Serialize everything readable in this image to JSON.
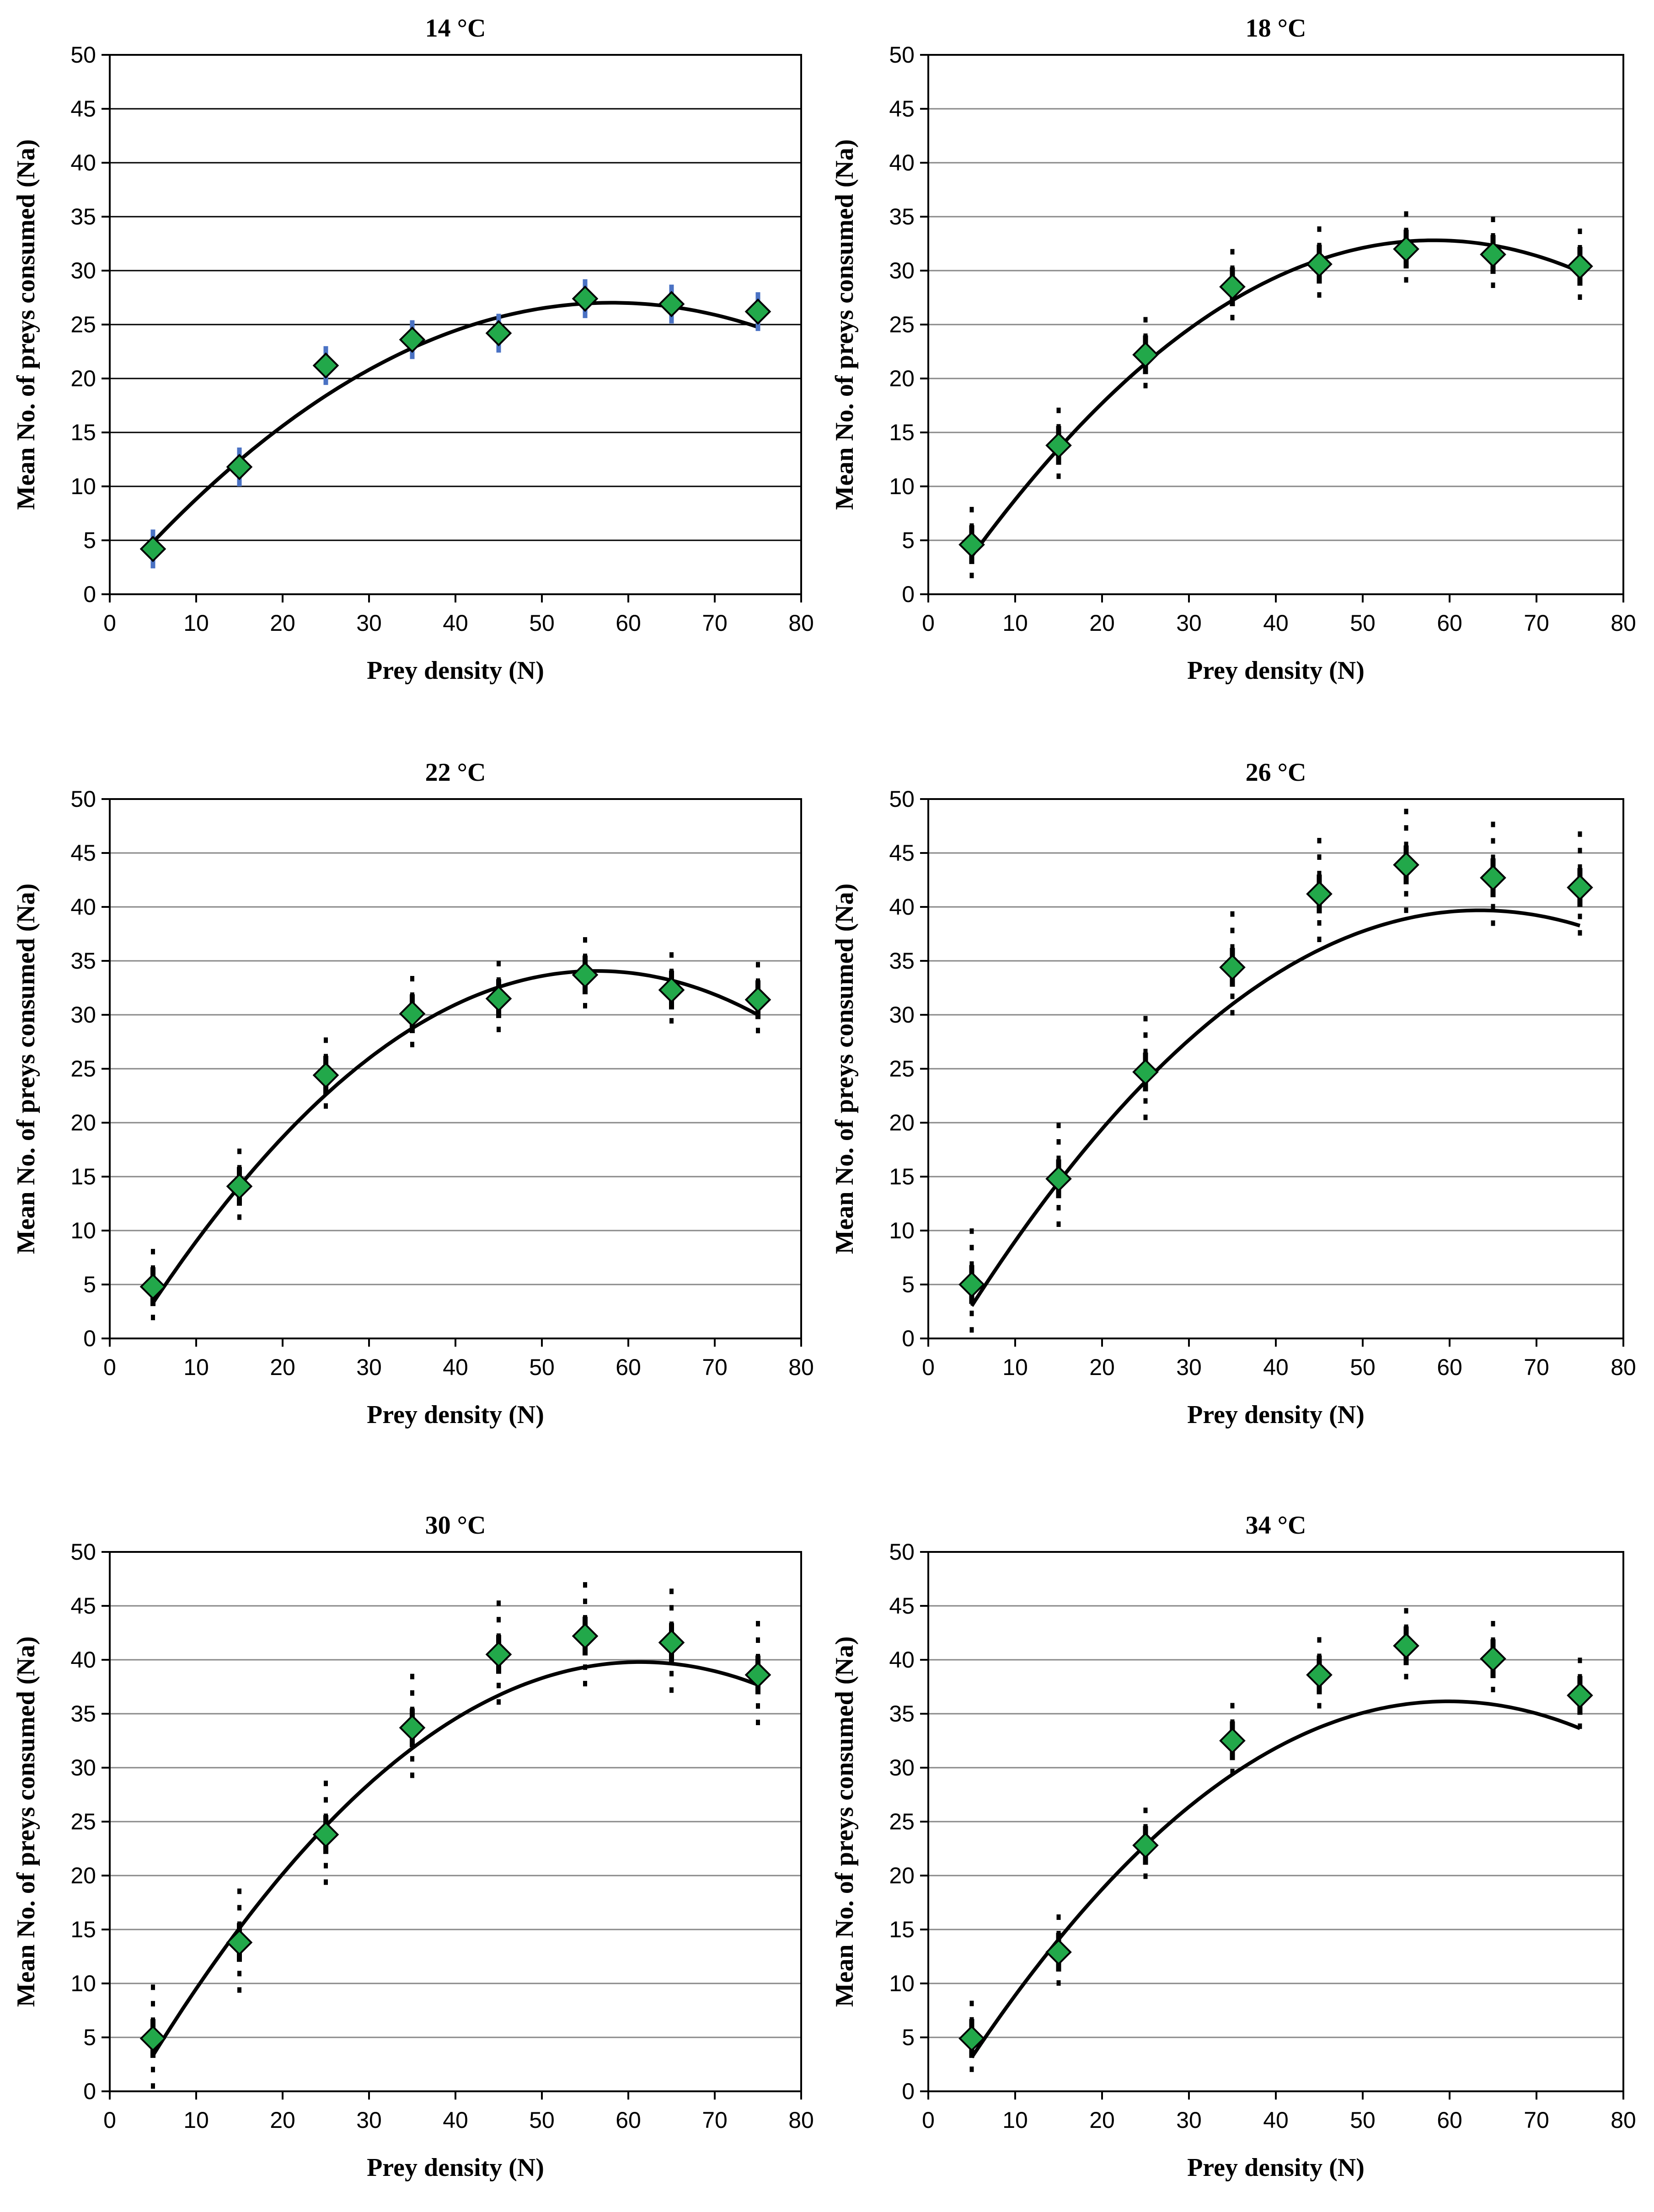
{
  "chart_data": [
    {
      "type": "scatter",
      "title": "14 °C",
      "xlabel": "Prey density (N)",
      "ylabel": "Mean No. of preys consumed (Na)",
      "xlim": [
        0,
        80
      ],
      "ylim": [
        0,
        50
      ],
      "xticks": [
        0,
        10,
        20,
        30,
        40,
        50,
        60,
        70,
        80
      ],
      "yticks": [
        0,
        5,
        10,
        15,
        20,
        25,
        30,
        35,
        40,
        45,
        50
      ],
      "grid": true,
      "colors": {
        "marker": "#22a84a",
        "error_bar": "#4a72c4",
        "fit": "#000000"
      },
      "x": [
        5,
        15,
        25,
        35,
        45,
        55,
        65,
        75
      ],
      "y": [
        4.2,
        11.8,
        21.2,
        23.6,
        24.2,
        27.4,
        26.9,
        26.2
      ],
      "error_inner": [
        1.8,
        1.8,
        1.8,
        1.8,
        1.8,
        1.8,
        1.8,
        1.8
      ],
      "error_outer": [
        0,
        0,
        0,
        0,
        0,
        0,
        0,
        0
      ],
      "fit_curve": {
        "type": "quadratic",
        "a": -0.00787,
        "b": 0.9144,
        "c": 0.46,
        "x_range": [
          5,
          75
        ]
      }
    },
    {
      "type": "scatter",
      "title": "18 °C",
      "xlabel": "Prey density (N)",
      "ylabel": "Mean No. of preys consumed (Na)",
      "xlim": [
        0,
        80
      ],
      "ylim": [
        0,
        50
      ],
      "xticks": [
        0,
        10,
        20,
        30,
        40,
        50,
        60,
        70,
        80
      ],
      "yticks": [
        0,
        5,
        10,
        15,
        20,
        25,
        30,
        35,
        40,
        45,
        50
      ],
      "grid": true,
      "colors": {
        "marker": "#22a84a",
        "error_bar": "#000000",
        "fit": "#000000"
      },
      "x": [
        5,
        15,
        25,
        35,
        45,
        55,
        65,
        75
      ],
      "y": [
        4.6,
        13.8,
        22.2,
        28.5,
        30.6,
        32.0,
        31.5,
        30.4
      ],
      "error_inner": [
        1.8,
        1.8,
        1.8,
        1.8,
        1.8,
        1.8,
        1.8,
        1.8
      ],
      "error_outer": [
        3.5,
        3.5,
        3.5,
        3.5,
        3.5,
        3.5,
        3.5,
        3.5
      ],
      "fit_curve": {
        "type": "quadratic",
        "a": -0.01034,
        "b": 1.204,
        "c": -2.24,
        "x_range": [
          5,
          75
        ]
      }
    },
    {
      "type": "scatter",
      "title": "22 °C",
      "xlabel": "Prey density (N)",
      "ylabel": "Mean No. of preys consumed (Na)",
      "xlim": [
        0,
        80
      ],
      "ylim": [
        0,
        50
      ],
      "xticks": [
        0,
        10,
        20,
        30,
        40,
        50,
        60,
        70,
        80
      ],
      "yticks": [
        0,
        5,
        10,
        15,
        20,
        25,
        30,
        35,
        40,
        45,
        50
      ],
      "grid": true,
      "colors": {
        "marker": "#22a84a",
        "error_bar": "#000000",
        "fit": "#000000"
      },
      "x": [
        5,
        15,
        25,
        35,
        45,
        55,
        65,
        75
      ],
      "y": [
        4.8,
        14.1,
        24.4,
        30.1,
        31.5,
        33.7,
        32.3,
        31.4
      ],
      "error_inner": [
        1.8,
        1.8,
        1.8,
        1.8,
        1.8,
        1.8,
        1.8,
        1.8
      ],
      "error_outer": [
        3.5,
        3.5,
        3.5,
        3.5,
        3.5,
        3.5,
        3.5,
        3.5
      ],
      "fit_curve": {
        "type": "quadratic",
        "a": -0.01168,
        "b": 1.3159,
        "c": -3.0,
        "x_range": [
          5,
          75
        ]
      }
    },
    {
      "type": "scatter",
      "title": "26 °C",
      "xlabel": "Prey density (N)",
      "ylabel": "Mean No. of preys consumed (Na)",
      "xlim": [
        0,
        80
      ],
      "ylim": [
        0,
        50
      ],
      "xticks": [
        0,
        10,
        20,
        30,
        40,
        50,
        60,
        70,
        80
      ],
      "yticks": [
        0,
        5,
        10,
        15,
        20,
        25,
        30,
        35,
        40,
        45,
        50
      ],
      "grid": true,
      "colors": {
        "marker": "#22a84a",
        "error_bar": "#000000",
        "fit": "#000000"
      },
      "x": [
        5,
        15,
        25,
        35,
        45,
        55,
        65,
        75
      ],
      "y": [
        5.0,
        14.8,
        24.7,
        34.4,
        41.2,
        43.9,
        42.7,
        41.8
      ],
      "error_inner": [
        1.8,
        1.8,
        1.8,
        1.8,
        1.8,
        1.8,
        1.8,
        1.8
      ],
      "error_outer": [
        5.2,
        5.2,
        5.2,
        5.2,
        5.2,
        5.2,
        5.2,
        5.2
      ],
      "fit_curve": {
        "type": "quadratic",
        "a": -0.01072,
        "b": 1.3611,
        "c": -3.52,
        "x_range": [
          5,
          75
        ]
      }
    },
    {
      "type": "scatter",
      "title": "30 °C",
      "xlabel": "Prey density (N)",
      "ylabel": "Mean No. of preys consumed (Na)",
      "xlim": [
        0,
        80
      ],
      "ylim": [
        0,
        50
      ],
      "xticks": [
        0,
        10,
        20,
        30,
        40,
        50,
        60,
        70,
        80
      ],
      "yticks": [
        0,
        5,
        10,
        15,
        20,
        25,
        30,
        35,
        40,
        45,
        50
      ],
      "grid": true,
      "colors": {
        "marker": "#22a84a",
        "error_bar": "#000000",
        "fit": "#000000"
      },
      "x": [
        5,
        15,
        25,
        35,
        45,
        55,
        65,
        75
      ],
      "y": [
        4.9,
        13.8,
        23.8,
        33.7,
        40.5,
        42.2,
        41.6,
        38.6
      ],
      "error_inner": [
        1.8,
        1.8,
        1.8,
        1.8,
        1.8,
        1.8,
        1.8,
        1.8
      ],
      "error_outer": [
        5.0,
        5.0,
        5.0,
        5.0,
        5.0,
        5.0,
        5.0,
        5.0
      ],
      "fit_curve": {
        "type": "quadratic",
        "a": -0.01146,
        "b": 1.4076,
        "c": -3.43,
        "x_range": [
          5,
          75
        ]
      }
    },
    {
      "type": "scatter",
      "title": "34 °C",
      "xlabel": "Prey density (N)",
      "ylabel": "Mean No. of preys consumed (Na)",
      "xlim": [
        0,
        80
      ],
      "ylim": [
        0,
        50
      ],
      "xticks": [
        0,
        10,
        20,
        30,
        40,
        50,
        60,
        70,
        80
      ],
      "yticks": [
        0,
        5,
        10,
        15,
        20,
        25,
        30,
        35,
        40,
        45,
        50
      ],
      "grid": true,
      "colors": {
        "marker": "#22a84a",
        "error_bar": "#000000",
        "fit": "#000000"
      },
      "x": [
        5,
        15,
        25,
        35,
        45,
        55,
        65,
        75
      ],
      "y": [
        4.9,
        12.9,
        22.8,
        32.5,
        38.6,
        41.3,
        40.1,
        36.7
      ],
      "error_inner": [
        1.8,
        1.8,
        1.8,
        1.8,
        1.8,
        1.8,
        1.8,
        1.8
      ],
      "error_outer": [
        3.5,
        3.5,
        3.5,
        3.5,
        3.5,
        3.5,
        3.5,
        3.5
      ],
      "fit_curve": {
        "type": "quadratic",
        "a": -0.01096,
        "b": 1.3124,
        "c": -3.14,
        "x_range": [
          5,
          75
        ]
      }
    }
  ]
}
